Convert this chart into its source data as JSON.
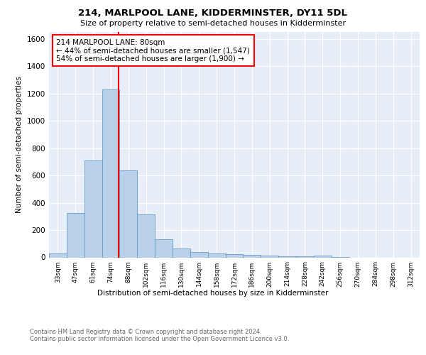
{
  "title1": "214, MARLPOOL LANE, KIDDERMINSTER, DY11 5DL",
  "title2": "Size of property relative to semi-detached houses in Kidderminster",
  "xlabel": "Distribution of semi-detached houses by size in Kidderminster",
  "ylabel": "Number of semi-detached properties",
  "footer": "Contains HM Land Registry data © Crown copyright and database right 2024.\nContains public sector information licensed under the Open Government Licence v3.0.",
  "bin_labels": [
    "33sqm",
    "47sqm",
    "61sqm",
    "74sqm",
    "88sqm",
    "102sqm",
    "116sqm",
    "130sqm",
    "144sqm",
    "158sqm",
    "172sqm",
    "186sqm",
    "200sqm",
    "214sqm",
    "228sqm",
    "242sqm",
    "256sqm",
    "270sqm",
    "284sqm",
    "298sqm",
    "312sqm"
  ],
  "bin_values": [
    30,
    325,
    710,
    1230,
    635,
    315,
    130,
    65,
    40,
    28,
    22,
    18,
    12,
    10,
    8,
    15,
    5,
    0,
    0,
    0,
    0
  ],
  "bar_color": "#b8d0e8",
  "bar_edge_color": "#6699cc",
  "annotation_text": "214 MARLPOOL LANE: 80sqm\n← 44% of semi-detached houses are smaller (1,547)\n54% of semi-detached houses are larger (1,900) →",
  "annotation_box_color": "white",
  "annotation_box_edge_color": "red",
  "vline_color": "red",
  "ylim": [
    0,
    1650
  ],
  "yticks": [
    0,
    200,
    400,
    600,
    800,
    1000,
    1200,
    1400,
    1600
  ],
  "background_color": "#e8eef8"
}
